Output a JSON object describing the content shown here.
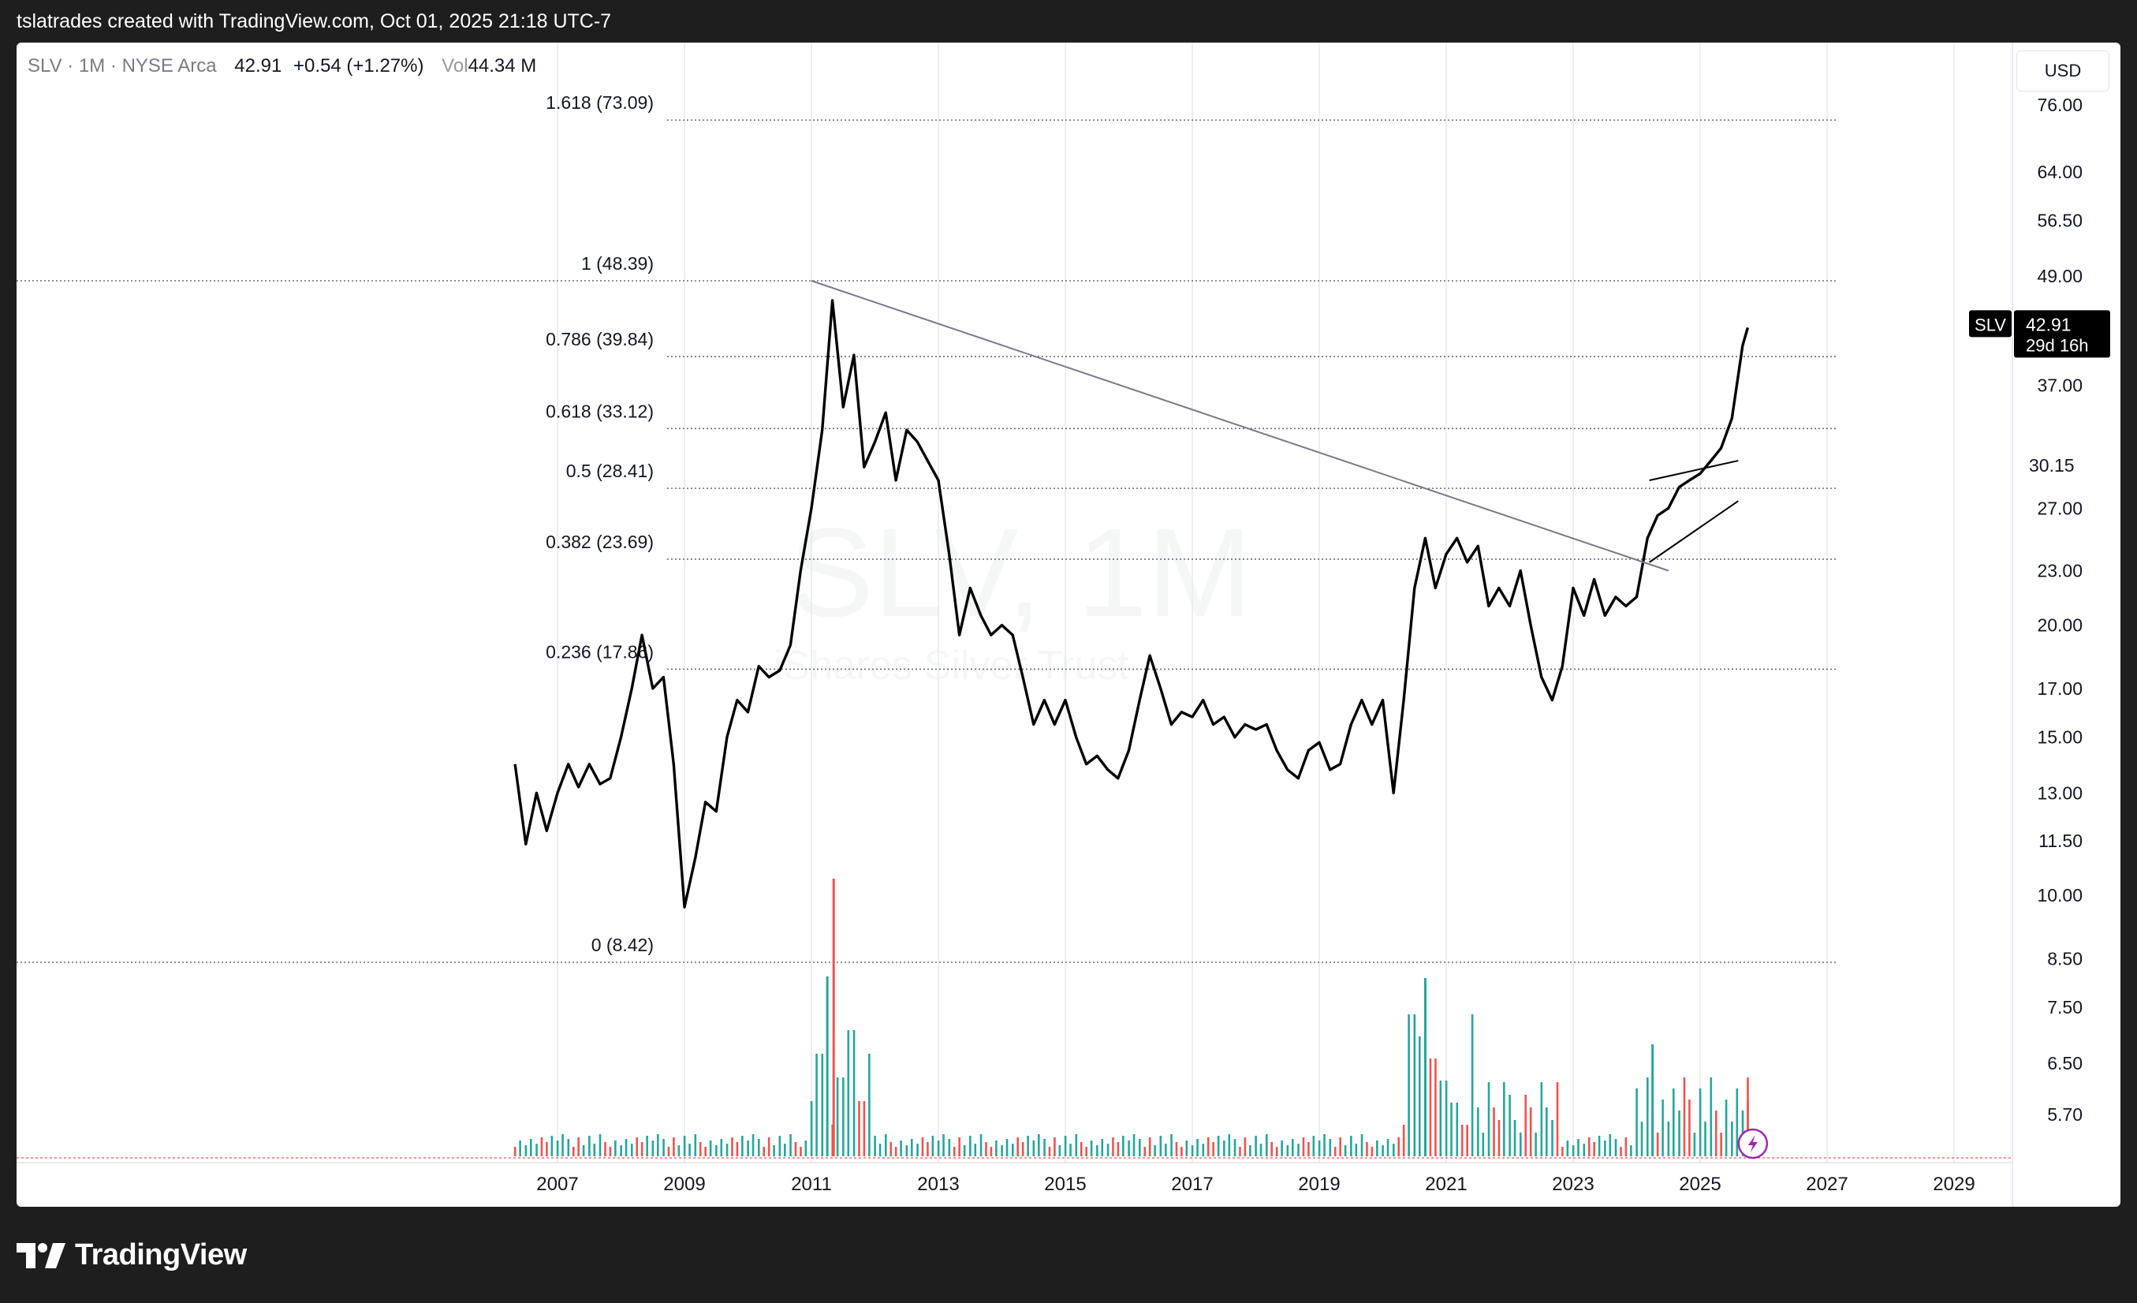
{
  "header": {
    "title": "tslatrades created with TradingView.com, Oct 01, 2025 21:18 UTC-7"
  },
  "legend": {
    "symbol": "SLV · 1M · NYSE Arca",
    "price": "42.91",
    "change": "+0.54 (+1.27%)",
    "vol_label": "Vol",
    "vol_value": "44.34 M"
  },
  "currency": "USD",
  "watermark": {
    "ticker": "SLV, 1M",
    "name": "iShares Silver Trust"
  },
  "price_badge": {
    "symbol": "SLV",
    "price": "42.91",
    "countdown": "29d 16h"
  },
  "price_marker": "30.15",
  "brand": "TradingView",
  "colors": {
    "price_line": "#000000",
    "volume_up": "#26a69a",
    "volume_down": "#ef5350",
    "trendline": "#787b86"
  },
  "chart_data": {
    "type": "line",
    "x_axis": {
      "ticks": [
        "2007",
        "2009",
        "2011",
        "2013",
        "2015",
        "2017",
        "2019",
        "2021",
        "2023",
        "2025",
        "2027",
        "2029"
      ]
    },
    "y_axis": {
      "scale": "log",
      "ticks": [
        "76.00",
        "64.00",
        "56.50",
        "49.00",
        "37.00",
        "27.00",
        "23.00",
        "20.00",
        "17.00",
        "15.00",
        "13.00",
        "11.50",
        "10.00",
        "8.50",
        "7.50",
        "6.50",
        "5.70"
      ]
    },
    "fib_levels": [
      {
        "label": "1.618 (73.09)",
        "value": 73.09
      },
      {
        "label": "1 (48.39)",
        "value": 48.39
      },
      {
        "label": "0.786 (39.84)",
        "value": 39.84
      },
      {
        "label": "0.618 (33.12)",
        "value": 33.12
      },
      {
        "label": "0.5 (28.41)",
        "value": 28.41
      },
      {
        "label": "0.382 (23.69)",
        "value": 23.69
      },
      {
        "label": "0.236 (17.86)",
        "value": 17.86
      },
      {
        "label": "0 (8.42)",
        "value": 8.42
      }
    ],
    "series": [
      {
        "points": [
          [
            2006.33,
            14.0
          ],
          [
            2006.5,
            11.4
          ],
          [
            2006.67,
            13.0
          ],
          [
            2006.83,
            11.8
          ],
          [
            2007.0,
            13.0
          ],
          [
            2007.17,
            14.0
          ],
          [
            2007.33,
            13.2
          ],
          [
            2007.5,
            14.0
          ],
          [
            2007.67,
            13.3
          ],
          [
            2007.83,
            13.5
          ],
          [
            2008.0,
            15.0
          ],
          [
            2008.17,
            17.0
          ],
          [
            2008.33,
            19.5
          ],
          [
            2008.5,
            17.0
          ],
          [
            2008.67,
            17.5
          ],
          [
            2008.83,
            14.0
          ],
          [
            2009.0,
            9.7
          ],
          [
            2009.17,
            11.0
          ],
          [
            2009.33,
            12.7
          ],
          [
            2009.5,
            12.4
          ],
          [
            2009.67,
            15.0
          ],
          [
            2009.83,
            16.5
          ],
          [
            2010.0,
            16.0
          ],
          [
            2010.17,
            18.0
          ],
          [
            2010.33,
            17.5
          ],
          [
            2010.5,
            17.8
          ],
          [
            2010.67,
            19.0
          ],
          [
            2010.83,
            23.0
          ],
          [
            2011.0,
            27.0
          ],
          [
            2011.17,
            33.0
          ],
          [
            2011.33,
            46.0
          ],
          [
            2011.5,
            35.0
          ],
          [
            2011.67,
            40.0
          ],
          [
            2011.83,
            30.0
          ],
          [
            2012.0,
            32.0
          ],
          [
            2012.17,
            34.5
          ],
          [
            2012.33,
            29.0
          ],
          [
            2012.5,
            33.0
          ],
          [
            2012.67,
            32.0
          ],
          [
            2012.83,
            30.5
          ],
          [
            2013.0,
            29.0
          ],
          [
            2013.17,
            24.0
          ],
          [
            2013.33,
            19.5
          ],
          [
            2013.5,
            22.0
          ],
          [
            2013.67,
            20.5
          ],
          [
            2013.83,
            19.5
          ],
          [
            2014.0,
            20.0
          ],
          [
            2014.17,
            19.5
          ],
          [
            2014.33,
            17.5
          ],
          [
            2014.5,
            15.5
          ],
          [
            2014.67,
            16.5
          ],
          [
            2014.83,
            15.5
          ],
          [
            2015.0,
            16.5
          ],
          [
            2015.17,
            15.0
          ],
          [
            2015.33,
            14.0
          ],
          [
            2015.5,
            14.3
          ],
          [
            2015.67,
            13.8
          ],
          [
            2015.83,
            13.5
          ],
          [
            2016.0,
            14.5
          ],
          [
            2016.17,
            16.5
          ],
          [
            2016.33,
            18.5
          ],
          [
            2016.5,
            17.0
          ],
          [
            2016.67,
            15.5
          ],
          [
            2016.83,
            16.0
          ],
          [
            2017.0,
            15.8
          ],
          [
            2017.17,
            16.5
          ],
          [
            2017.33,
            15.5
          ],
          [
            2017.5,
            15.8
          ],
          [
            2017.67,
            15.0
          ],
          [
            2017.83,
            15.5
          ],
          [
            2018.0,
            15.3
          ],
          [
            2018.17,
            15.5
          ],
          [
            2018.33,
            14.5
          ],
          [
            2018.5,
            13.8
          ],
          [
            2018.67,
            13.5
          ],
          [
            2018.83,
            14.5
          ],
          [
            2019.0,
            14.8
          ],
          [
            2019.17,
            13.8
          ],
          [
            2019.33,
            14.0
          ],
          [
            2019.5,
            15.5
          ],
          [
            2019.67,
            16.5
          ],
          [
            2019.83,
            15.5
          ],
          [
            2020.0,
            16.5
          ],
          [
            2020.17,
            13.0
          ],
          [
            2020.33,
            16.5
          ],
          [
            2020.5,
            22.0
          ],
          [
            2020.67,
            25.0
          ],
          [
            2020.83,
            22.0
          ],
          [
            2021.0,
            24.0
          ],
          [
            2021.17,
            25.0
          ],
          [
            2021.33,
            23.5
          ],
          [
            2021.5,
            24.5
          ],
          [
            2021.67,
            21.0
          ],
          [
            2021.83,
            22.0
          ],
          [
            2022.0,
            21.0
          ],
          [
            2022.17,
            23.0
          ],
          [
            2022.33,
            20.0
          ],
          [
            2022.5,
            17.5
          ],
          [
            2022.67,
            16.5
          ],
          [
            2022.83,
            18.0
          ],
          [
            2023.0,
            22.0
          ],
          [
            2023.17,
            20.5
          ],
          [
            2023.33,
            22.5
          ],
          [
            2023.5,
            20.5
          ],
          [
            2023.67,
            21.5
          ],
          [
            2023.83,
            21.0
          ],
          [
            2024.0,
            21.5
          ],
          [
            2024.17,
            25.0
          ],
          [
            2024.33,
            26.5
          ],
          [
            2024.5,
            27.0
          ],
          [
            2024.67,
            28.5
          ],
          [
            2024.83,
            29.0
          ],
          [
            2025.0,
            29.5
          ],
          [
            2025.17,
            30.5
          ],
          [
            2025.33,
            31.5
          ],
          [
            2025.5,
            34.0
          ],
          [
            2025.67,
            41.0
          ],
          [
            2025.75,
            42.91
          ]
        ]
      },
      {
        "type": "bar",
        "role": "volume"
      }
    ],
    "drawings": {
      "downtrend_line": [
        [
          2011.0,
          48.39
        ],
        [
          2024.5,
          23.0
        ]
      ],
      "channel_upper": [
        [
          2024.2,
          29.0
        ],
        [
          2025.6,
          30.5
        ]
      ],
      "channel_lower": [
        [
          2024.2,
          23.5
        ],
        [
          2025.6,
          27.5
        ]
      ]
    }
  }
}
